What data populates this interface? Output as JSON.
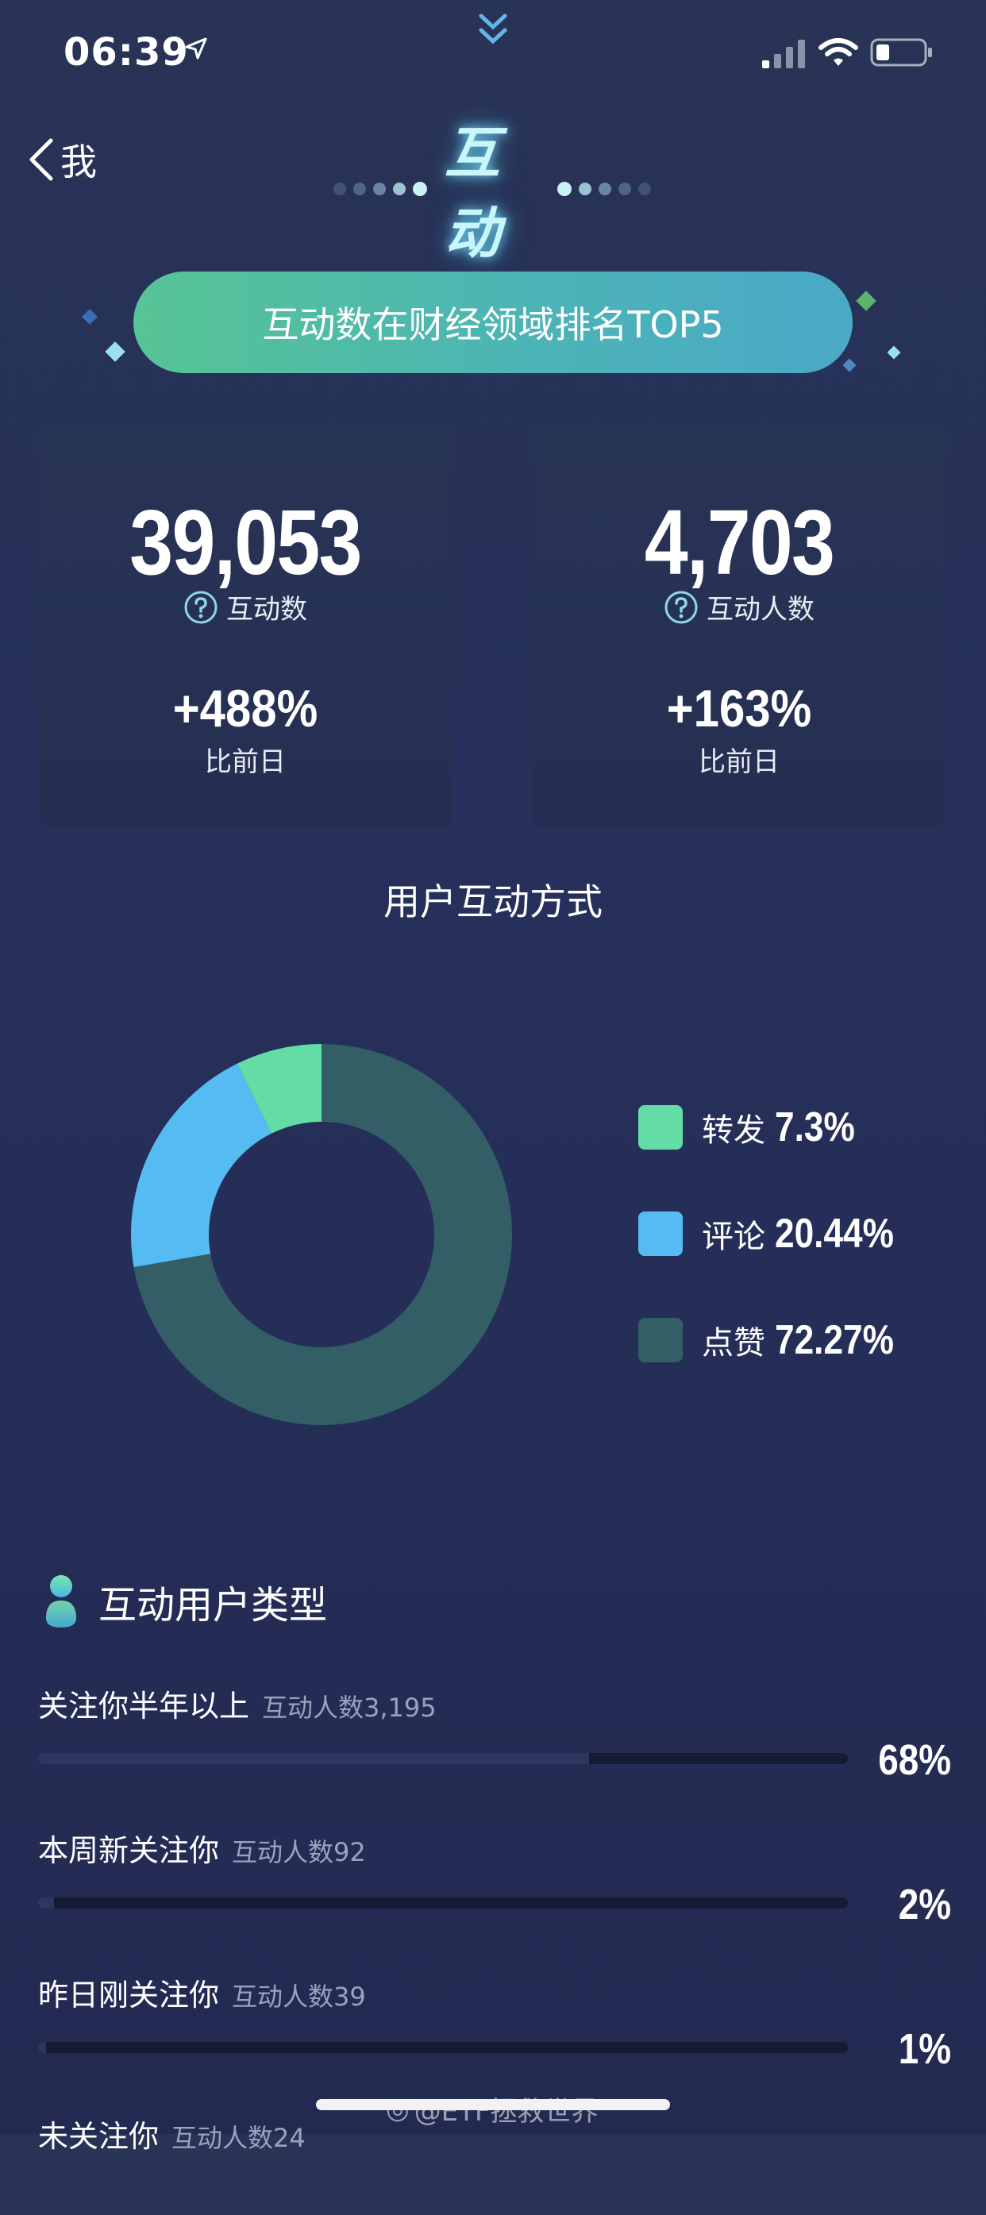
{
  "status_bar": {
    "time": "06:39",
    "icons": [
      "location-arrow-icon",
      "signal-icon",
      "wifi-icon",
      "battery-icon"
    ]
  },
  "nav": {
    "back_label": "我",
    "title": "互动"
  },
  "rank_banner": "互动数在财经领域排名TOP5",
  "stats": [
    {
      "value": "39,053",
      "label": "互动数",
      "delta": "+488%",
      "delta_label": "比前日"
    },
    {
      "value": "4,703",
      "label": "互动人数",
      "delta": "+163%",
      "delta_label": "比前日"
    }
  ],
  "chart_data": {
    "type": "pie",
    "title": "用户互动方式",
    "categories": [
      "转发",
      "评论",
      "点赞"
    ],
    "values": [
      7.3,
      20.44,
      72.27
    ],
    "value_labels": [
      "7.3%",
      "20.44%",
      "72.27%"
    ],
    "colors": [
      "#63dca6",
      "#56bbf2",
      "#335e66"
    ],
    "legend": "right",
    "donut": true
  },
  "user_types": {
    "title": "互动用户类型",
    "rows": [
      {
        "name": "关注你半年以上",
        "count": "互动人数3,195",
        "pct": "68%",
        "value": 68
      },
      {
        "name": "本周新关注你",
        "count": "互动人数92",
        "pct": "2%",
        "value": 2
      },
      {
        "name": "昨日刚关注你",
        "count": "互动人数39",
        "pct": "1%",
        "value": 1
      },
      {
        "name": "未关注你",
        "count": "互动人数24",
        "pct": "",
        "value": 0
      }
    ]
  },
  "watermark": "@ETF拯救世界",
  "colors": {
    "background": "#26305a",
    "accent_green": "#56c494",
    "accent_blue": "#4aa9c7",
    "title_glow": "#c8f6fb"
  }
}
